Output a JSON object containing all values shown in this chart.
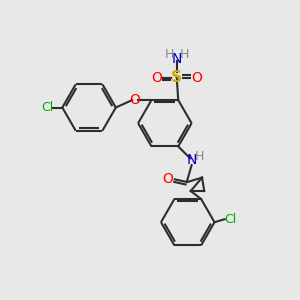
{
  "bg_color": "#e8e8e8",
  "line_color": "#2d2d2d",
  "bond_lw": 1.5,
  "colors": {
    "Cl": "#00aa00",
    "O": "#ff0000",
    "N": "#0000cc",
    "S": "#ccaa00",
    "H": "#888888",
    "C": "#2d2d2d"
  },
  "figsize": [
    3.0,
    3.0
  ],
  "dpi": 100
}
